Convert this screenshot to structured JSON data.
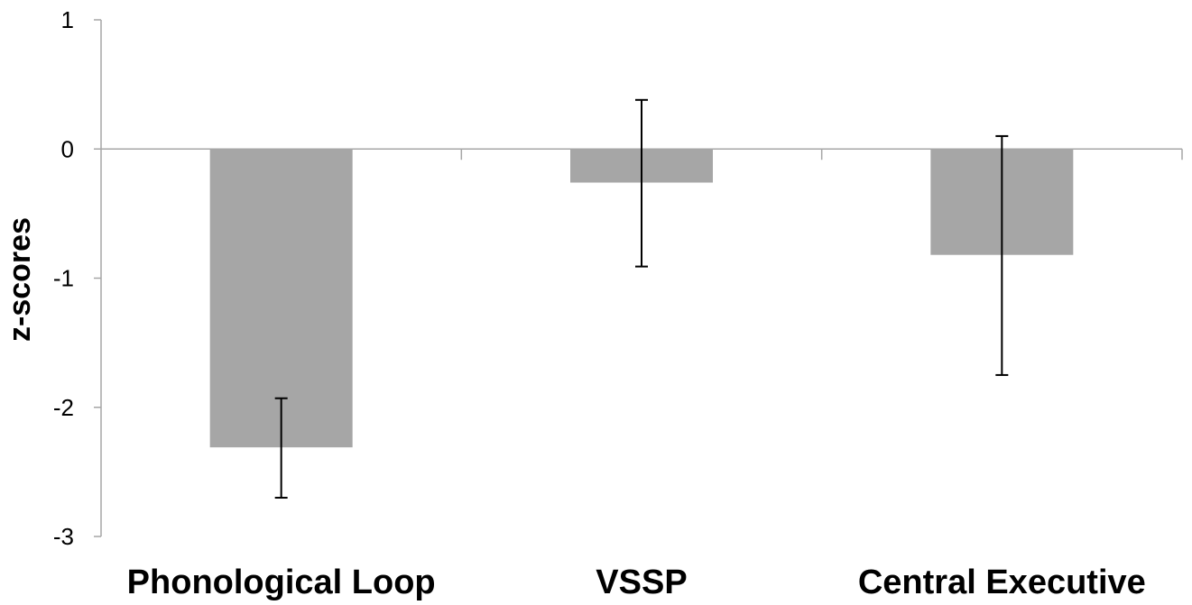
{
  "chart_data": {
    "type": "bar",
    "title": "",
    "xlabel": "",
    "ylabel": "z-scores",
    "categories": [
      "Phonological Loop",
      "VSSP",
      "Central Executive"
    ],
    "series": [
      {
        "values": [
          -2.31,
          -0.26,
          -0.82
        ],
        "error_low": [
          -2.7,
          -0.91,
          -1.75
        ],
        "error_high": [
          -1.93,
          0.38,
          0.1
        ]
      }
    ],
    "ylim": [
      -3,
      1
    ],
    "yticks": [
      1,
      0,
      -1,
      -2,
      -3
    ],
    "grid": false,
    "legend": "none",
    "colors": {
      "bar": "#a6a6a6",
      "axis": "#a6a6a6",
      "error": "#000000"
    }
  }
}
